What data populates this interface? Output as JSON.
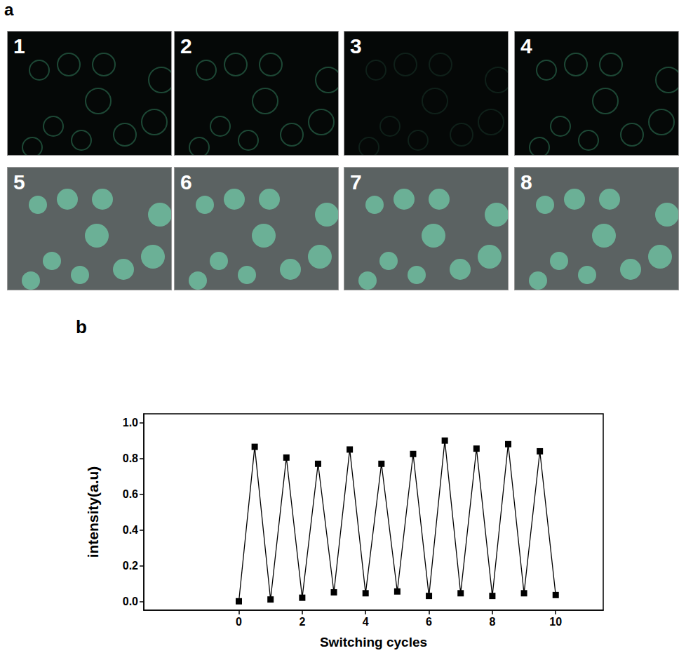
{
  "panel_a": {
    "label": "a",
    "images": [
      "1",
      "2",
      "3",
      "4",
      "5",
      "6",
      "7",
      "8"
    ]
  },
  "chart_data": {
    "type": "line",
    "title": "b",
    "x_label": "Switching cycles",
    "y_label": "intensity(a.u)",
    "x": [
      0,
      0.5,
      1,
      1.5,
      2,
      2.5,
      3,
      3.5,
      4,
      4.5,
      5,
      5.5,
      6,
      6.5,
      7,
      7.5,
      8,
      8.5,
      9,
      9.5,
      10
    ],
    "values": [
      0.0,
      0.865,
      0.01,
      0.805,
      0.02,
      0.77,
      0.05,
      0.85,
      0.045,
      0.77,
      0.055,
      0.825,
      0.03,
      0.9,
      0.045,
      0.855,
      0.03,
      0.88,
      0.045,
      0.84,
      0.035
    ],
    "color": "#000000",
    "marker": "square",
    "line_style": "solid",
    "xlim": [
      -3,
      11.5
    ],
    "xticks": [
      0,
      2,
      4,
      6,
      8,
      10
    ],
    "ylim": [
      -0.05,
      1.05
    ],
    "yticks": [
      {
        "value": 0,
        "label": "0.0"
      },
      {
        "value": 0.2,
        "label": "0.2"
      },
      {
        "value": 0.4,
        "label": "0.4"
      },
      {
        "value": 0.6,
        "label": "0.6"
      },
      {
        "value": 0.8,
        "label": "0.8"
      },
      {
        "value": 1,
        "label": "1.0"
      }
    ],
    "grid": false
  }
}
